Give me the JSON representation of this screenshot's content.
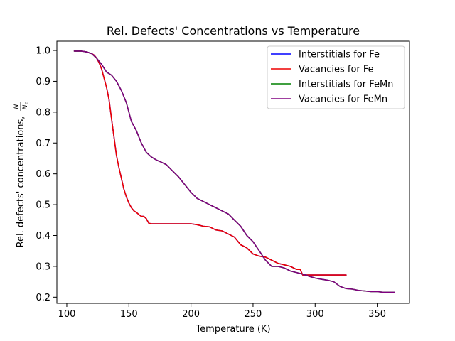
{
  "chart_data": {
    "type": "line",
    "title": "Rel. Defects' Concentrations vs Temperature",
    "xlabel": "Temperature (K)",
    "ylabel": "Rel. defects' concentrations, ",
    "ylabel_fraction": {
      "numerator": "N",
      "denominator": "N",
      "denominator_subscript": "0"
    },
    "xlim": [
      92,
      376
    ],
    "ylim": [
      0.18,
      1.03
    ],
    "xticks": [
      100,
      150,
      200,
      250,
      300,
      350
    ],
    "yticks": [
      0.2,
      0.3,
      0.4,
      0.5,
      0.6,
      0.7,
      0.8,
      0.9,
      1.0
    ],
    "grid": false,
    "legend_position": "top-right",
    "series": [
      {
        "name": "Interstitials for Fe",
        "color": "#0000ff",
        "x": [
          106,
          112,
          116,
          120,
          122,
          124,
          126,
          128,
          130,
          132,
          134,
          136,
          138,
          140,
          142,
          144,
          146,
          148,
          150,
          152,
          154,
          156,
          158,
          160,
          162,
          164,
          166,
          168,
          170,
          180,
          190,
          200,
          205,
          210,
          215,
          220,
          225,
          230,
          235,
          240,
          245,
          250,
          255,
          260,
          265,
          270,
          275,
          280,
          285,
          288,
          290,
          300,
          310,
          320,
          325
        ],
        "y": [
          0.998,
          0.998,
          0.995,
          0.99,
          0.985,
          0.975,
          0.96,
          0.94,
          0.91,
          0.88,
          0.84,
          0.78,
          0.72,
          0.66,
          0.62,
          0.585,
          0.55,
          0.525,
          0.505,
          0.49,
          0.48,
          0.475,
          0.468,
          0.462,
          0.462,
          0.455,
          0.44,
          0.438,
          0.438,
          0.438,
          0.438,
          0.438,
          0.435,
          0.43,
          0.428,
          0.418,
          0.415,
          0.405,
          0.395,
          0.37,
          0.36,
          0.34,
          0.333,
          0.33,
          0.32,
          0.31,
          0.305,
          0.3,
          0.29,
          0.29,
          0.272,
          0.272,
          0.272,
          0.272,
          0.272
        ]
      },
      {
        "name": "Vacancies for Fe",
        "color": "#ee0000",
        "x": [
          106,
          112,
          116,
          120,
          122,
          124,
          126,
          128,
          130,
          132,
          134,
          136,
          138,
          140,
          142,
          144,
          146,
          148,
          150,
          152,
          154,
          156,
          158,
          160,
          162,
          164,
          166,
          168,
          170,
          180,
          190,
          200,
          205,
          210,
          215,
          220,
          225,
          230,
          235,
          240,
          245,
          250,
          255,
          260,
          265,
          270,
          275,
          280,
          285,
          288,
          290,
          300,
          310,
          320,
          325
        ],
        "y": [
          0.998,
          0.998,
          0.995,
          0.99,
          0.985,
          0.975,
          0.96,
          0.94,
          0.91,
          0.88,
          0.84,
          0.78,
          0.72,
          0.66,
          0.62,
          0.585,
          0.55,
          0.525,
          0.505,
          0.49,
          0.48,
          0.475,
          0.468,
          0.462,
          0.462,
          0.455,
          0.44,
          0.438,
          0.438,
          0.438,
          0.438,
          0.438,
          0.435,
          0.43,
          0.428,
          0.418,
          0.415,
          0.405,
          0.395,
          0.37,
          0.36,
          0.34,
          0.333,
          0.33,
          0.32,
          0.31,
          0.305,
          0.3,
          0.29,
          0.29,
          0.272,
          0.272,
          0.272,
          0.272,
          0.272
        ]
      },
      {
        "name": "Interstitials for FeMn",
        "color": "#008000",
        "x": [
          106,
          112,
          116,
          120,
          124,
          128,
          132,
          136,
          140,
          144,
          148,
          152,
          156,
          160,
          164,
          168,
          172,
          176,
          180,
          185,
          190,
          195,
          200,
          205,
          210,
          215,
          220,
          225,
          230,
          235,
          240,
          245,
          250,
          255,
          260,
          265,
          270,
          275,
          280,
          285,
          290,
          295,
          300,
          305,
          310,
          315,
          320,
          325,
          330,
          335,
          340,
          345,
          350,
          355,
          360,
          364
        ],
        "y": [
          0.998,
          0.998,
          0.995,
          0.99,
          0.975,
          0.955,
          0.93,
          0.92,
          0.9,
          0.87,
          0.83,
          0.77,
          0.74,
          0.7,
          0.67,
          0.655,
          0.645,
          0.638,
          0.63,
          0.61,
          0.59,
          0.565,
          0.54,
          0.52,
          0.51,
          0.5,
          0.49,
          0.48,
          0.47,
          0.45,
          0.43,
          0.4,
          0.38,
          0.35,
          0.32,
          0.3,
          0.3,
          0.295,
          0.285,
          0.28,
          0.275,
          0.268,
          0.262,
          0.258,
          0.255,
          0.25,
          0.235,
          0.228,
          0.226,
          0.222,
          0.22,
          0.218,
          0.218,
          0.216,
          0.216,
          0.216
        ]
      },
      {
        "name": "Vacancies for FeMn",
        "color": "#800080",
        "x": [
          106,
          112,
          116,
          120,
          124,
          128,
          132,
          136,
          140,
          144,
          148,
          152,
          156,
          160,
          164,
          168,
          172,
          176,
          180,
          185,
          190,
          195,
          200,
          205,
          210,
          215,
          220,
          225,
          230,
          235,
          240,
          245,
          250,
          255,
          260,
          265,
          270,
          275,
          280,
          285,
          290,
          295,
          300,
          305,
          310,
          315,
          320,
          325,
          330,
          335,
          340,
          345,
          350,
          355,
          360,
          364
        ],
        "y": [
          0.998,
          0.998,
          0.995,
          0.99,
          0.975,
          0.955,
          0.93,
          0.92,
          0.9,
          0.87,
          0.83,
          0.77,
          0.74,
          0.7,
          0.67,
          0.655,
          0.645,
          0.638,
          0.63,
          0.61,
          0.59,
          0.565,
          0.54,
          0.52,
          0.51,
          0.5,
          0.49,
          0.48,
          0.47,
          0.45,
          0.43,
          0.4,
          0.38,
          0.35,
          0.32,
          0.3,
          0.3,
          0.295,
          0.285,
          0.28,
          0.275,
          0.268,
          0.262,
          0.258,
          0.255,
          0.25,
          0.235,
          0.228,
          0.226,
          0.222,
          0.22,
          0.218,
          0.218,
          0.216,
          0.216,
          0.216
        ]
      }
    ]
  }
}
